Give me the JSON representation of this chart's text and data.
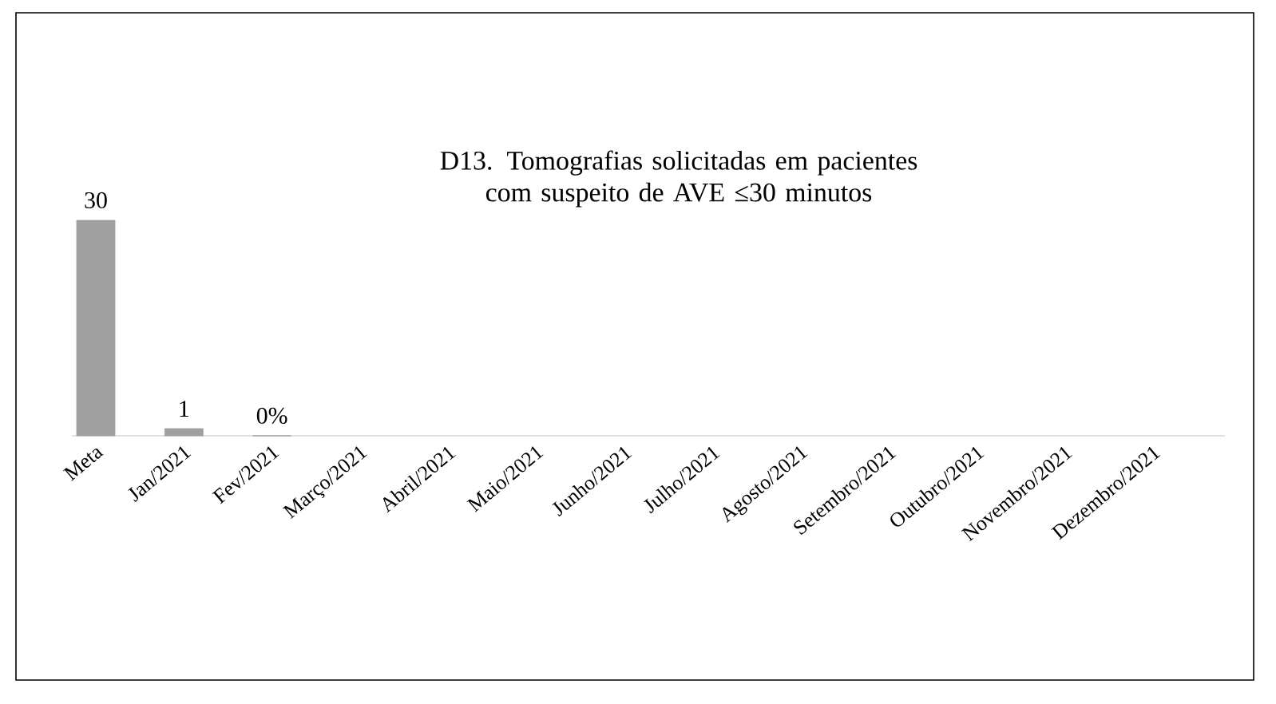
{
  "chart_data": {
    "type": "bar",
    "title": "D13. Tomografias solicitadas em pacientes com suspeito de AVE ≤30 minutos",
    "categories": [
      "Meta",
      "Jan/2021",
      "Fev/2021",
      "Março/2021",
      "Abril/2021",
      "Maio/2021",
      "Junho/2021",
      "Julho/2021",
      "Agosto/2021",
      "Setembro/2021",
      "Outubro/2021",
      "Novembro/2021",
      "Dezembro/2021"
    ],
    "values": [
      30,
      1,
      0,
      null,
      null,
      null,
      null,
      null,
      null,
      null,
      null,
      null,
      null
    ],
    "value_labels": [
      "30",
      "1",
      "0%",
      null,
      null,
      null,
      null,
      null,
      null,
      null,
      null,
      null,
      null
    ],
    "color": "#a0a0a0"
  }
}
